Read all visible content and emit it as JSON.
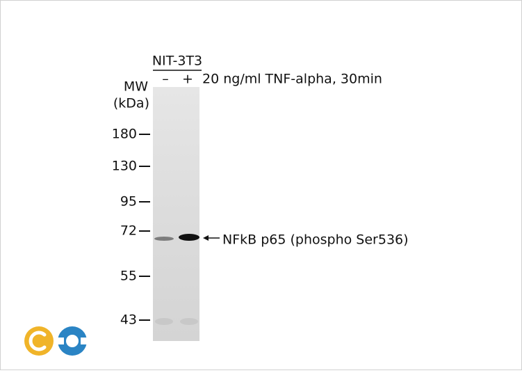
{
  "header": {
    "cell_line": "NIT-3T3",
    "lanes": [
      "–",
      "+"
    ],
    "treatment": "20 ng/ml TNF-alpha, 30min"
  },
  "ladder": {
    "title": "MW",
    "unit": "(kDa)",
    "markers": [
      "180",
      "130",
      "95",
      "72",
      "55",
      "43"
    ]
  },
  "band": {
    "label": "NFkB p65 (phospho Ser536)"
  }
}
